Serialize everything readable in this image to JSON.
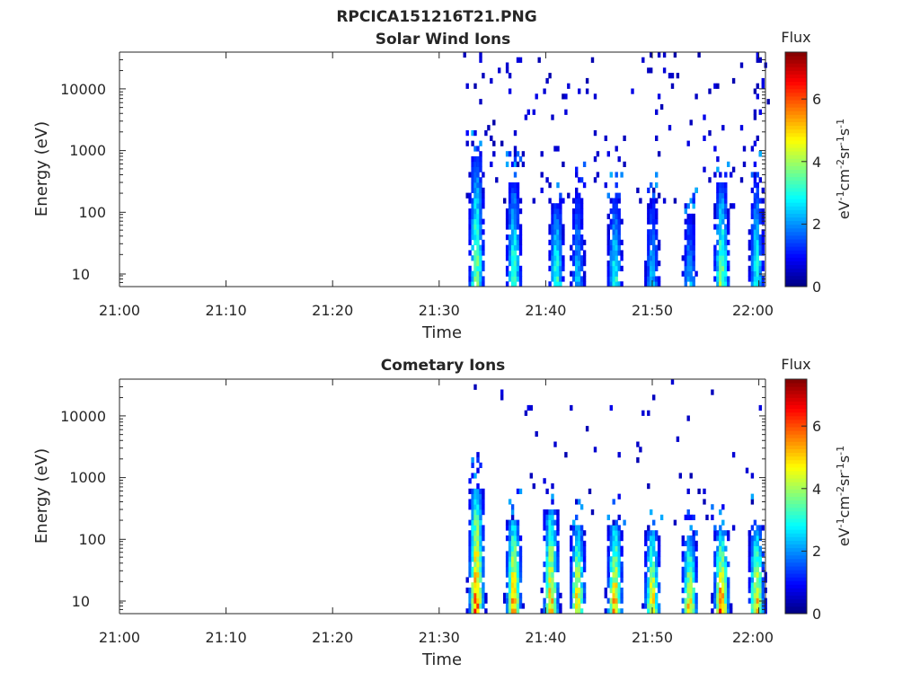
{
  "figure": {
    "title": "RPCICA151216T21.PNG"
  },
  "chart_data": [
    {
      "type": "heatmap",
      "title": "Solar Wind Ions",
      "xlabel": "Time",
      "ylabel": "Energy (eV)",
      "x_tick_labels": [
        "21:00",
        "21:10",
        "21:20",
        "21:30",
        "21:40",
        "21:50",
        "22:00"
      ],
      "y_tick_labels": [
        "10",
        "100",
        "1000",
        "10000"
      ],
      "y_scale": "log",
      "ylim": [
        6,
        40000
      ],
      "xlim": [
        "21:00",
        "22:01"
      ],
      "data_start": "21:32",
      "colorbar": {
        "title": "Flux",
        "label": "eV-1cm-2sr-1s-1",
        "ticks": [
          "0",
          "2",
          "4",
          "6"
        ],
        "range": [
          0,
          7.5
        ],
        "colormap": "jet"
      },
      "events": [
        {
          "t": "21:33.5",
          "peak_flux": 4.6,
          "top_eV": 700
        },
        {
          "t": "21:37",
          "peak_flux": 4.0,
          "top_eV": 300
        },
        {
          "t": "21:41",
          "peak_flux": 4.0,
          "top_eV": 120
        },
        {
          "t": "21:43",
          "peak_flux": 2.8,
          "top_eV": 200
        },
        {
          "t": "21:46.5",
          "peak_flux": 3.6,
          "top_eV": 150
        },
        {
          "t": "21:50",
          "peak_flux": 2.8,
          "top_eV": 150
        },
        {
          "t": "21:53.5",
          "peak_flux": 2.8,
          "top_eV": 80
        },
        {
          "t": "21:56.5",
          "peak_flux": 4.6,
          "top_eV": 250
        },
        {
          "t": "21:59.8",
          "peak_flux": 3.6,
          "top_eV": 300
        }
      ]
    },
    {
      "type": "heatmap",
      "title": "Cometary Ions",
      "xlabel": "Time",
      "ylabel": "Energy (eV)",
      "x_tick_labels": [
        "21:00",
        "21:10",
        "21:20",
        "21:30",
        "21:40",
        "21:50",
        "22:00"
      ],
      "y_tick_labels": [
        "10",
        "100",
        "1000",
        "10000"
      ],
      "y_scale": "log",
      "ylim": [
        6,
        40000
      ],
      "xlim": [
        "21:00",
        "22:01"
      ],
      "data_start": "21:32",
      "colorbar": {
        "title": "Flux",
        "label": "eV-1cm-2sr-1s-1",
        "ticks": [
          "0",
          "2",
          "4",
          "6"
        ],
        "range": [
          0,
          7.5
        ],
        "colormap": "jet"
      },
      "events": [
        {
          "t": "21:33.5",
          "peak_flux": 7.0,
          "top_eV": 600
        },
        {
          "t": "21:37",
          "peak_flux": 6.5,
          "top_eV": 200
        },
        {
          "t": "21:40.5",
          "peak_flux": 6.3,
          "top_eV": 300
        },
        {
          "t": "21:43",
          "peak_flux": 6.0,
          "top_eV": 150
        },
        {
          "t": "21:46.5",
          "peak_flux": 6.5,
          "top_eV": 150
        },
        {
          "t": "21:50",
          "peak_flux": 6.0,
          "top_eV": 120
        },
        {
          "t": "21:53.5",
          "peak_flux": 6.0,
          "top_eV": 100
        },
        {
          "t": "21:56.5",
          "peak_flux": 7.0,
          "top_eV": 120
        },
        {
          "t": "21:59.8",
          "peak_flux": 6.0,
          "top_eV": 150
        }
      ]
    }
  ]
}
